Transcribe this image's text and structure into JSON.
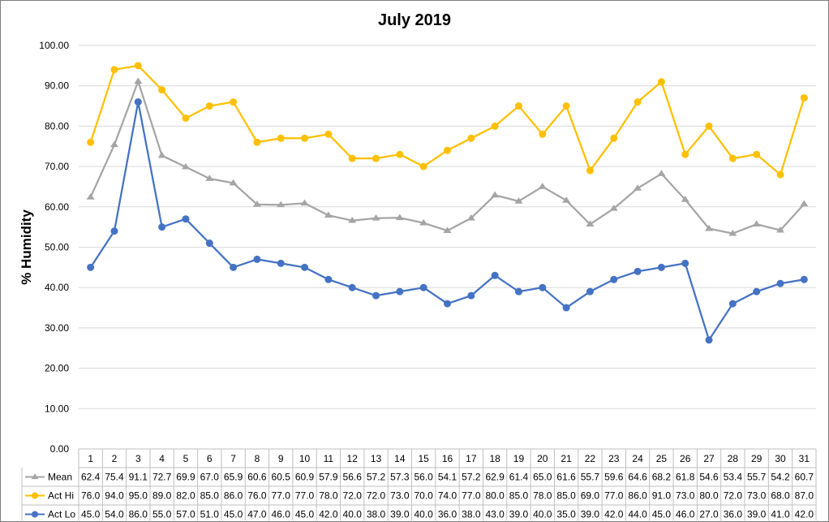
{
  "chart_data": {
    "type": "line",
    "title": "July 2019",
    "xlabel": "",
    "ylabel": "% Humidity",
    "ylim": [
      0,
      100
    ],
    "ytick_step": 10,
    "ytick_format_decimals": 2,
    "grid": "horizontal",
    "legend": "data-table",
    "categories": [
      "1",
      "2",
      "3",
      "4",
      "5",
      "6",
      "7",
      "8",
      "9",
      "10",
      "11",
      "12",
      "13",
      "14",
      "15",
      "16",
      "17",
      "18",
      "19",
      "20",
      "21",
      "22",
      "23",
      "24",
      "25",
      "26",
      "27",
      "28",
      "29",
      "30",
      "31"
    ],
    "series": [
      {
        "name": "Mean",
        "color": "#a5a5a5",
        "marker": "triangle",
        "values": [
          62.4,
          75.4,
          91.1,
          72.7,
          69.9,
          67.0,
          65.9,
          60.6,
          60.5,
          60.9,
          57.9,
          56.6,
          57.2,
          57.3,
          56.0,
          54.1,
          57.2,
          62.9,
          61.4,
          65.0,
          61.6,
          55.7,
          59.6,
          64.6,
          68.2,
          61.8,
          54.6,
          53.4,
          55.7,
          54.2,
          60.7
        ]
      },
      {
        "name": "Act Hi",
        "color": "#ffc000",
        "marker": "circle",
        "values": [
          76.0,
          94.0,
          95.0,
          89.0,
          82.0,
          85.0,
          86.0,
          76.0,
          77.0,
          77.0,
          78.0,
          72.0,
          72.0,
          73.0,
          70.0,
          74.0,
          77.0,
          80.0,
          85.0,
          78.0,
          85.0,
          69.0,
          77.0,
          86.0,
          91.0,
          73.0,
          80.0,
          72.0,
          73.0,
          68.0,
          87.0
        ]
      },
      {
        "name": "Act Lo",
        "color": "#4472c4",
        "marker": "circle",
        "values": [
          45.0,
          54.0,
          86.0,
          55.0,
          57.0,
          51.0,
          45.0,
          47.0,
          46.0,
          45.0,
          42.0,
          40.0,
          38.0,
          39.0,
          40.0,
          36.0,
          38.0,
          43.0,
          39.0,
          40.0,
          35.0,
          39.0,
          42.0,
          44.0,
          45.0,
          46.0,
          27.0,
          36.0,
          39.0,
          41.0,
          42.0
        ]
      }
    ]
  }
}
